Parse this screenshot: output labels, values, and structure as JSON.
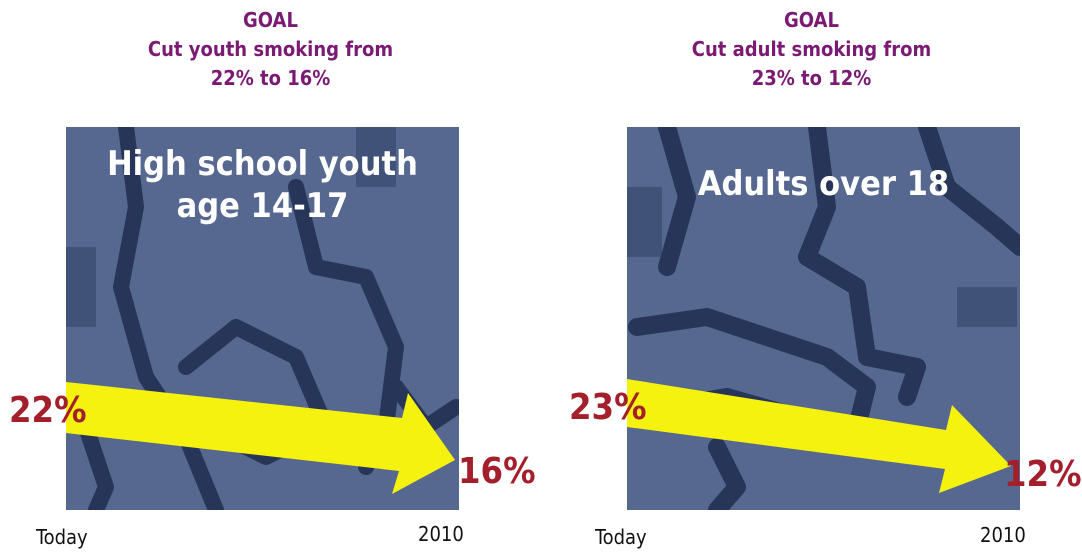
{
  "panels": [
    {
      "goal_heading": "GOAL",
      "goal_line1": "Cut youth smoking from",
      "goal_line2": "22% to 16%",
      "group_line1": "High school youth",
      "group_line2": "age 14-17",
      "start_label": "22%",
      "end_label": "16%",
      "x_start": "Today",
      "x_end": "2010"
    },
    {
      "goal_heading": "GOAL",
      "goal_line1": "Cut adult smoking from",
      "goal_line2": "23% to 12%",
      "group_line1": "Adults over 18",
      "group_line2": "",
      "start_label": "23%",
      "end_label": "12%",
      "x_start": "Today",
      "x_end": "2010"
    }
  ],
  "colors": {
    "goal_text": "#7b1a73",
    "value_text": "#a31f2c",
    "arrow": "#f4f20e",
    "background_art": "#56688f"
  },
  "chart_data": [
    {
      "type": "line",
      "x": [
        "Today",
        "2010"
      ],
      "series": [
        {
          "values": [
            22,
            16
          ]
        }
      ],
      "unit": "%"
    },
    {
      "type": "line",
      "x": [
        "Today",
        "2010"
      ],
      "series": [
        {
          "values": [
            23,
            12
          ]
        }
      ],
      "unit": "%"
    }
  ]
}
